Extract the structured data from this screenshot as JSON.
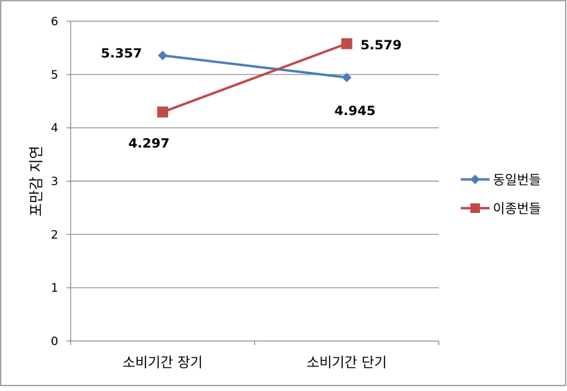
{
  "chart_data": {
    "type": "line",
    "categories": [
      "소비기간 장기",
      "소비기간 단기"
    ],
    "series": [
      {
        "name": "동일번들",
        "values": [
          5.357,
          4.945
        ],
        "color": "#4A7EBB",
        "marker": "diamond"
      },
      {
        "name": "이종번들",
        "values": [
          4.297,
          5.579
        ],
        "color": "#BE4B48",
        "marker": "square"
      }
    ],
    "data_labels": [
      "5.357",
      "4.945",
      "4.297",
      "5.579"
    ],
    "ylabel": "포만감 지연",
    "xlabel": "",
    "ylim": [
      0,
      6
    ],
    "yticks": [
      "0",
      "1",
      "2",
      "3",
      "4",
      "5",
      "6"
    ],
    "grid": true,
    "legend": "right"
  }
}
